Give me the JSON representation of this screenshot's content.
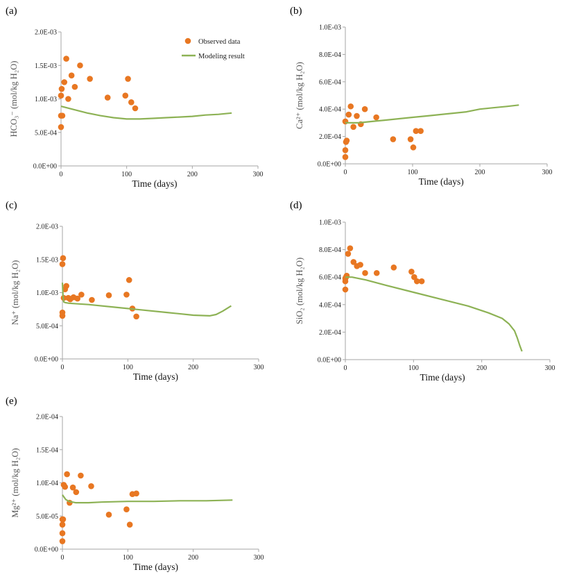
{
  "colors": {
    "observed": "#E87722",
    "model": "#8DB255",
    "axis": "#A6A6A6"
  },
  "legend": {
    "observed": "Observed data",
    "model": "Modeling result"
  },
  "chart_data": [
    {
      "type": "scatter",
      "label": "(a)",
      "title": "",
      "xlabel": "Time (days)",
      "ylabel": "HCO₃⁻ (mol/kg H₂O)",
      "xlim": [
        0,
        300
      ],
      "ylim": [
        0,
        0.002
      ],
      "xticks": [
        0,
        100,
        200,
        300
      ],
      "yticks": [
        0,
        0.0005,
        0.001,
        0.0015,
        0.002
      ],
      "ytick_labels": [
        "0.0E+00",
        "5.0E-04",
        "1.0E-03",
        "1.5E-03",
        "2.0E-03"
      ],
      "show_legend": true,
      "series": [
        {
          "name": "Observed data",
          "kind": "scatter",
          "x": [
            0,
            0,
            0,
            1,
            2,
            5,
            8,
            11,
            16,
            21,
            29,
            44,
            71,
            98,
            102,
            107,
            113
          ],
          "y": [
            0.00058,
            0.00075,
            0.00105,
            0.00115,
            0.00075,
            0.00125,
            0.0016,
            0.001,
            0.00135,
            0.00118,
            0.0015,
            0.0013,
            0.00102,
            0.00105,
            0.0013,
            0.00095,
            0.00086
          ]
        },
        {
          "name": "Modeling result",
          "kind": "line",
          "x": [
            0,
            20,
            40,
            60,
            80,
            100,
            120,
            140,
            160,
            180,
            200,
            220,
            240,
            260
          ],
          "y": [
            0.00089,
            0.00084,
            0.00079,
            0.00075,
            0.00072,
            0.0007,
            0.0007,
            0.00071,
            0.00072,
            0.00073,
            0.00074,
            0.00076,
            0.00077,
            0.00079
          ]
        }
      ]
    },
    {
      "type": "scatter",
      "label": "(b)",
      "title": "",
      "xlabel": "Time (days)",
      "ylabel": "Ca²⁺ (mol/kg H₂O)",
      "xlim": [
        0,
        300
      ],
      "ylim": [
        0,
        0.001
      ],
      "xticks": [
        0,
        100,
        200,
        300
      ],
      "yticks": [
        0,
        0.0002,
        0.0004,
        0.0006,
        0.0008,
        0.001
      ],
      "ytick_labels": [
        "0.0E+00",
        "2.0E-04",
        "4.0E-04",
        "6.0E-04",
        "8.0E-04",
        "1.0E-03"
      ],
      "show_legend": false,
      "series": [
        {
          "name": "Observed data",
          "kind": "scatter",
          "x": [
            0,
            0,
            0,
            1,
            2,
            5,
            8,
            12,
            17,
            23,
            29,
            46,
            71,
            97,
            101,
            105,
            112
          ],
          "y": [
            5e-05,
            0.0001,
            0.00031,
            0.00016,
            0.00017,
            0.00036,
            0.00042,
            0.00027,
            0.00035,
            0.00029,
            0.0004,
            0.00034,
            0.00018,
            0.00018,
            0.00012,
            0.00024,
            0.00024
          ]
        },
        {
          "name": "Modeling result",
          "kind": "line",
          "x": [
            0,
            20,
            40,
            60,
            80,
            100,
            120,
            140,
            160,
            180,
            200,
            220,
            240,
            258
          ],
          "y": [
            0.0003,
            0.0003,
            0.00031,
            0.00032,
            0.00033,
            0.00034,
            0.00035,
            0.00036,
            0.00037,
            0.00038,
            0.0004,
            0.00041,
            0.00042,
            0.00043
          ]
        }
      ]
    },
    {
      "type": "scatter",
      "label": "(c)",
      "title": "",
      "xlabel": "Time (days)",
      "ylabel": "Na⁺ (mol/kg H₂O)",
      "xlim": [
        0,
        300
      ],
      "ylim": [
        0,
        0.002
      ],
      "xticks": [
        0,
        100,
        200,
        300
      ],
      "yticks": [
        0,
        0.0005,
        0.001,
        0.0015,
        0.002
      ],
      "ytick_labels": [
        "0.0E+00",
        "5.0E-04",
        "1.0E-03",
        "1.5E-03",
        "2.0E-03"
      ],
      "show_legend": false,
      "series": [
        {
          "name": "Observed data",
          "kind": "scatter",
          "x": [
            0,
            0,
            0,
            1,
            2,
            4,
            6,
            9,
            12,
            17,
            23,
            29,
            45,
            71,
            98,
            102,
            107,
            113
          ],
          "y": [
            0.00065,
            0.0007,
            0.00143,
            0.00152,
            0.00092,
            0.00105,
            0.0011,
            0.00092,
            0.0009,
            0.00093,
            0.00091,
            0.00097,
            0.00089,
            0.00096,
            0.00097,
            0.00119,
            0.00076,
            0.00064
          ]
        },
        {
          "name": "Modeling result",
          "kind": "line",
          "x": [
            0,
            1,
            2,
            4,
            10,
            40,
            80,
            120,
            160,
            200,
            225,
            235,
            245,
            258
          ],
          "y": [
            0.00115,
            0.00095,
            0.00086,
            0.00085,
            0.00084,
            0.00082,
            0.00078,
            0.00074,
            0.0007,
            0.00066,
            0.00065,
            0.00067,
            0.00072,
            0.0008
          ]
        }
      ]
    },
    {
      "type": "scatter",
      "label": "(d)",
      "title": "",
      "xlabel": "Time (days)",
      "ylabel": "SiO₂ (mol/kg H₂O)",
      "xlim": [
        0,
        300
      ],
      "ylim": [
        0,
        0.001
      ],
      "xticks": [
        0,
        100,
        200,
        300
      ],
      "yticks": [
        0,
        0.0002,
        0.0004,
        0.0006,
        0.0008,
        0.001
      ],
      "ytick_labels": [
        "0.0E+00",
        "2.0E-04",
        "4.0E-04",
        "6.0E-04",
        "8.0E-04",
        "1.0E-03"
      ],
      "show_legend": false,
      "series": [
        {
          "name": "Observed data",
          "kind": "scatter",
          "x": [
            0,
            0,
            0,
            1,
            2,
            4,
            7,
            12,
            17,
            22,
            29,
            46,
            71,
            97,
            101,
            105,
            112
          ],
          "y": [
            0.00051,
            0.00057,
            0.00059,
            0.0006,
            0.00061,
            0.00077,
            0.00081,
            0.00071,
            0.00068,
            0.00069,
            0.00063,
            0.00063,
            0.00067,
            0.00064,
            0.0006,
            0.00057,
            0.00057
          ]
        },
        {
          "name": "Modeling result",
          "kind": "line",
          "x": [
            0,
            10,
            30,
            60,
            100,
            140,
            180,
            210,
            230,
            240,
            248,
            252,
            256,
            259
          ],
          "y": [
            0.0006,
            0.0006,
            0.00058,
            0.00054,
            0.00049,
            0.00044,
            0.00039,
            0.00034,
            0.0003,
            0.00026,
            0.00021,
            0.00016,
            0.0001,
            6e-05
          ]
        }
      ]
    },
    {
      "type": "scatter",
      "label": "(e)",
      "title": "",
      "xlabel": "Time (days)",
      "ylabel": "Mg²⁺ (mol/kg H₂O)",
      "xlim": [
        0,
        300
      ],
      "ylim": [
        0,
        0.0002
      ],
      "xticks": [
        0,
        100,
        200,
        300
      ],
      "yticks": [
        0,
        5e-05,
        0.0001,
        0.00015,
        0.0002
      ],
      "ytick_labels": [
        "0.0E+00",
        "5.0E-05",
        "1.0E-04",
        "1.5E-04",
        "2.0E-04"
      ],
      "show_legend": false,
      "series": [
        {
          "name": "Observed data",
          "kind": "scatter",
          "x": [
            0,
            0,
            0,
            0,
            1,
            2,
            4,
            7,
            11,
            16,
            21,
            28,
            44,
            71,
            98,
            103,
            107,
            113
          ],
          "y": [
            1.2e-05,
            2.4e-05,
            3.7e-05,
            4.5e-05,
            4.5e-05,
            9.7e-05,
            9.4e-05,
            0.000113,
            7e-05,
            9.3e-05,
            8.6e-05,
            0.000111,
            9.5e-05,
            5.2e-05,
            6e-05,
            3.7e-05,
            8.3e-05,
            8.4e-05
          ]
        },
        {
          "name": "Modeling result",
          "kind": "line",
          "x": [
            0,
            5,
            10,
            20,
            40,
            60,
            100,
            140,
            180,
            220,
            260
          ],
          "y": [
            8.2e-05,
            7.5e-05,
            7.2e-05,
            7e-05,
            7e-05,
            7.1e-05,
            7.2e-05,
            7.2e-05,
            7.3e-05,
            7.3e-05,
            7.4e-05
          ]
        }
      ]
    }
  ]
}
